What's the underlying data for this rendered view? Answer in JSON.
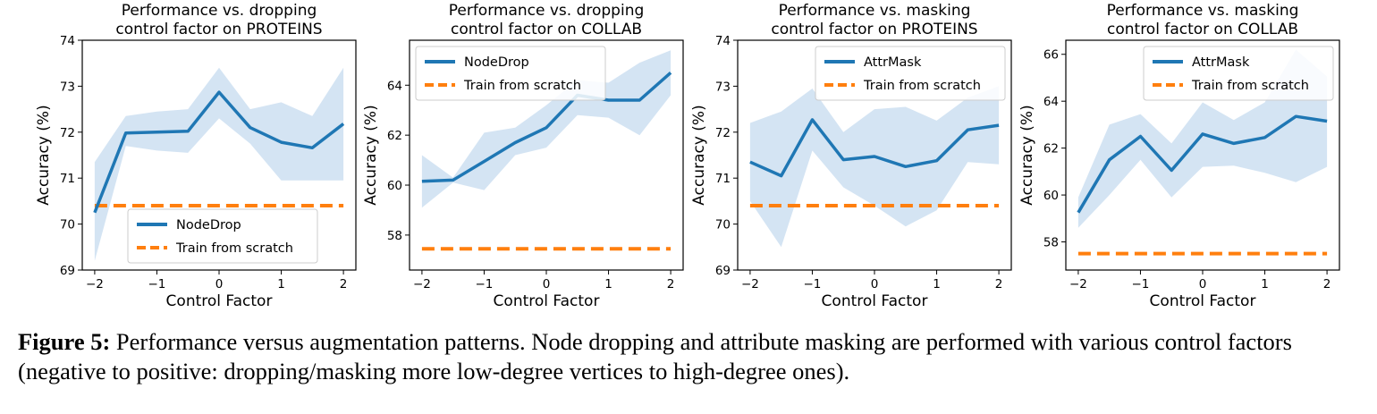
{
  "colors": {
    "accuracy": "#1f77b4",
    "band": "#c6dbef",
    "baseline": "#ff7f0e"
  },
  "caption": {
    "label": "Figure 5:",
    "text": " Performance versus augmentation patterns. Node dropping and attribute masking are performed with various control factors (negative to positive: dropping/masking more low-degree vertices to high-degree ones)."
  },
  "chart_data": [
    {
      "type": "line",
      "title": [
        "Performance vs. dropping",
        "control factor on PROTEINS"
      ],
      "xlabel": "Control Factor",
      "ylabel": "Accuracy (%)",
      "xlim": [
        -2.2,
        2.2
      ],
      "ylim": [
        69,
        74
      ],
      "xticks": [
        -2,
        -1,
        0,
        1,
        2
      ],
      "yticks": [
        69,
        70,
        71,
        72,
        73,
        74
      ],
      "xtick_labels": [
        "−2",
        "−1",
        "0",
        "1",
        "2"
      ],
      "ytick_labels": [
        "69",
        "70",
        "71",
        "72",
        "73",
        "74"
      ],
      "legend_position": "lower-center",
      "x": [
        -2,
        -1.5,
        -1,
        -0.5,
        0,
        0.5,
        1,
        1.5,
        2
      ],
      "series": [
        {
          "name": "NodeDrop",
          "role": "accuracy",
          "values": [
            70.25,
            71.98,
            72.0,
            72.02,
            72.87,
            72.1,
            71.78,
            71.66,
            72.18
          ],
          "lower": [
            69.2,
            71.7,
            71.6,
            71.55,
            72.3,
            71.75,
            70.95,
            70.95,
            70.95
          ],
          "upper": [
            71.35,
            72.35,
            72.45,
            72.5,
            73.4,
            72.5,
            72.65,
            72.35,
            73.4
          ]
        },
        {
          "name": "Train from scratch",
          "role": "baseline",
          "constant": 70.4
        }
      ]
    },
    {
      "type": "line",
      "title": [
        "Performance vs. dropping",
        "control factor on COLLAB"
      ],
      "xlabel": "Control Factor",
      "ylabel": "Accuracy (%)",
      "xlim": [
        -2.2,
        2.2
      ],
      "ylim": [
        56.6,
        65.8
      ],
      "xticks": [
        -2,
        -1,
        0,
        1,
        2
      ],
      "yticks": [
        58,
        60,
        62,
        64
      ],
      "xtick_labels": [
        "−2",
        "−1",
        "0",
        "1",
        "2"
      ],
      "ytick_labels": [
        "58",
        "60",
        "62",
        "64"
      ],
      "legend_position": "top-left",
      "x": [
        -2,
        -1.5,
        -1,
        -0.5,
        0,
        0.5,
        1,
        1.5,
        2
      ],
      "series": [
        {
          "name": "NodeDrop",
          "role": "accuracy",
          "values": [
            60.15,
            60.2,
            60.95,
            61.7,
            62.3,
            63.6,
            63.4,
            63.4,
            64.5
          ],
          "lower": [
            59.1,
            60.1,
            59.8,
            61.2,
            61.5,
            62.8,
            62.7,
            62.0,
            63.6
          ],
          "upper": [
            61.2,
            60.3,
            62.1,
            62.3,
            63.2,
            64.2,
            64.1,
            64.9,
            65.4
          ]
        },
        {
          "name": "Train from scratch",
          "role": "baseline",
          "constant": 57.45
        }
      ]
    },
    {
      "type": "line",
      "title": [
        "Performance vs. masking",
        "control factor on PROTEINS"
      ],
      "xlabel": "Control Factor",
      "ylabel": "Accuracy (%)",
      "xlim": [
        -2.2,
        2.2
      ],
      "ylim": [
        69,
        74
      ],
      "xticks": [
        -2,
        -1,
        0,
        1,
        2
      ],
      "yticks": [
        69,
        70,
        71,
        72,
        73,
        74
      ],
      "xtick_labels": [
        "−2",
        "−1",
        "0",
        "1",
        "2"
      ],
      "ytick_labels": [
        "69",
        "70",
        "71",
        "72",
        "73",
        "74"
      ],
      "legend_position": "top-right",
      "x": [
        -2,
        -1.5,
        -1,
        -0.5,
        0,
        0.5,
        1,
        1.5,
        2
      ],
      "series": [
        {
          "name": "AttrMask",
          "role": "accuracy",
          "values": [
            71.35,
            71.05,
            72.27,
            71.4,
            71.47,
            71.25,
            71.38,
            72.05,
            72.15
          ],
          "lower": [
            70.5,
            69.5,
            71.6,
            70.8,
            70.4,
            69.95,
            70.3,
            71.35,
            71.3
          ],
          "upper": [
            72.2,
            72.45,
            72.95,
            72.0,
            72.5,
            72.55,
            72.25,
            72.75,
            73.0
          ]
        },
        {
          "name": "Train from scratch",
          "role": "baseline",
          "constant": 70.4
        }
      ]
    },
    {
      "type": "line",
      "title": [
        "Performance vs. masking",
        "control factor on COLLAB"
      ],
      "xlabel": "Control Factor",
      "ylabel": "Accuracy (%)",
      "xlim": [
        -2.2,
        2.2
      ],
      "ylim": [
        56.8,
        66.6
      ],
      "xticks": [
        -2,
        -1,
        0,
        1,
        2
      ],
      "yticks": [
        58,
        60,
        62,
        64,
        66
      ],
      "xtick_labels": [
        "−2",
        "−1",
        "0",
        "1",
        "2"
      ],
      "ytick_labels": [
        "58",
        "60",
        "62",
        "64",
        "66"
      ],
      "legend_position": "top-right",
      "x": [
        -2,
        -1.5,
        -1,
        -0.5,
        0,
        0.5,
        1,
        1.5,
        2
      ],
      "series": [
        {
          "name": "AttrMask",
          "role": "accuracy",
          "values": [
            59.25,
            61.5,
            62.5,
            61.05,
            62.6,
            62.2,
            62.45,
            63.35,
            63.15
          ],
          "lower": [
            58.6,
            60.0,
            61.5,
            59.9,
            61.2,
            61.25,
            60.95,
            60.55,
            61.2
          ],
          "upper": [
            59.9,
            63.0,
            63.45,
            62.2,
            63.95,
            63.2,
            63.95,
            66.2,
            65.05
          ]
        },
        {
          "name": "Train from scratch",
          "role": "baseline",
          "constant": 57.5
        }
      ]
    }
  ]
}
